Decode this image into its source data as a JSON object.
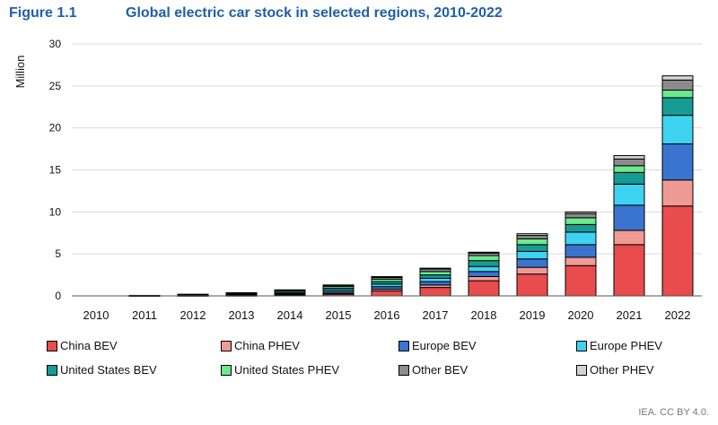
{
  "figure": {
    "number": "Figure 1.1",
    "title": "Global electric car stock in selected regions, 2010-2022"
  },
  "credit": "IEA. CC BY 4.0.",
  "chart_data": {
    "type": "bar",
    "stacked": true,
    "title": "Global electric car stock in selected regions, 2010-2022",
    "xlabel": "",
    "ylabel": "Million",
    "ylim": [
      0,
      30
    ],
    "yticks": [
      0,
      5,
      10,
      15,
      20,
      25,
      30
    ],
    "grid": true,
    "legend_position": "bottom",
    "categories": [
      "2010",
      "2011",
      "2012",
      "2013",
      "2014",
      "2015",
      "2016",
      "2017",
      "2018",
      "2019",
      "2020",
      "2021",
      "2022"
    ],
    "series": [
      {
        "name": "China BEV",
        "color": "#e84c4c",
        "values": [
          0.0,
          0.01,
          0.02,
          0.03,
          0.08,
          0.2,
          0.6,
          1.0,
          1.8,
          2.6,
          3.6,
          6.1,
          10.7
        ]
      },
      {
        "name": "China PHEV",
        "color": "#f09a94",
        "values": [
          0.0,
          0.0,
          0.0,
          0.0,
          0.02,
          0.06,
          0.2,
          0.3,
          0.5,
          0.8,
          1.0,
          1.7,
          3.1
        ]
      },
      {
        "name": "Europe BEV",
        "color": "#3a74cf",
        "values": [
          0.0,
          0.01,
          0.03,
          0.06,
          0.1,
          0.19,
          0.3,
          0.4,
          0.6,
          1.0,
          1.5,
          3.0,
          4.3
        ]
      },
      {
        "name": "Europe PHEV",
        "color": "#3fd3f2",
        "values": [
          0.0,
          0.0,
          0.02,
          0.05,
          0.1,
          0.2,
          0.3,
          0.4,
          0.6,
          0.9,
          1.5,
          2.5,
          3.4
        ]
      },
      {
        "name": "United States BEV",
        "color": "#169c94",
        "values": [
          0.0,
          0.01,
          0.03,
          0.07,
          0.14,
          0.25,
          0.3,
          0.4,
          0.7,
          0.8,
          0.9,
          1.4,
          2.1
        ]
      },
      {
        "name": "United States PHEV",
        "color": "#6de88c",
        "values": [
          0.0,
          0.01,
          0.05,
          0.1,
          0.17,
          0.21,
          0.3,
          0.4,
          0.6,
          0.7,
          0.8,
          0.8,
          0.9
        ]
      },
      {
        "name": "Other BEV",
        "color": "#8c8c8c",
        "values": [
          0.0,
          0.02,
          0.03,
          0.05,
          0.08,
          0.12,
          0.2,
          0.3,
          0.3,
          0.4,
          0.5,
          0.8,
          1.2
        ]
      },
      {
        "name": "Other PHEV",
        "color": "#d3d3d3",
        "values": [
          0.0,
          0.0,
          0.01,
          0.02,
          0.03,
          0.07,
          0.1,
          0.1,
          0.1,
          0.2,
          0.2,
          0.4,
          0.5
        ]
      }
    ]
  }
}
